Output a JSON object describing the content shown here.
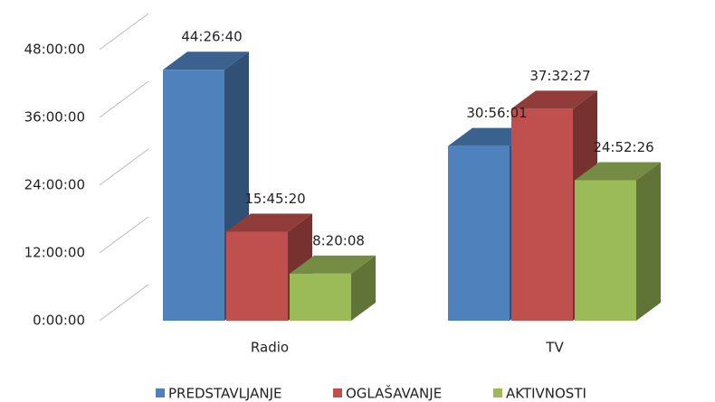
{
  "chart_data": {
    "type": "bar3d",
    "categories": [
      "Radio",
      "TV"
    ],
    "series": [
      {
        "name": "PREDSTAVLJANJE",
        "color": "#4f81bd",
        "values": [
          44.4444,
          30.9336
        ],
        "value_labels": [
          "44:26:40",
          "30:56:01"
        ]
      },
      {
        "name": "OGLAŠAVANJE",
        "color": "#c0504d",
        "values": [
          15.7556,
          37.5408
        ],
        "value_labels": [
          "15:45:20",
          "37:32:27"
        ]
      },
      {
        "name": "AKTIVNOSTI",
        "color": "#9bbb59",
        "values": [
          8.3356,
          24.8739
        ],
        "value_labels": [
          "8:20:08",
          "24:52:26"
        ]
      }
    ],
    "ylim": [
      0,
      48
    ],
    "yticks": [
      {
        "value": 0,
        "label": "0:00:00"
      },
      {
        "value": 12,
        "label": "12:00:00"
      },
      {
        "value": 24,
        "label": "24:00:00"
      },
      {
        "value": 36,
        "label": "36:00:00"
      },
      {
        "value": 48,
        "label": "48:00:00"
      }
    ],
    "grid": true,
    "legend": "bottom"
  }
}
